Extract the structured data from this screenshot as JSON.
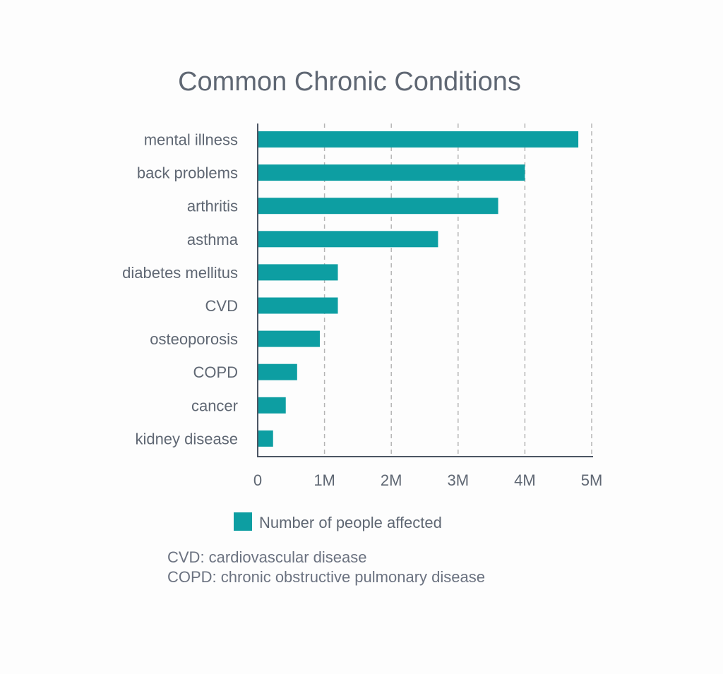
{
  "chart_data": {
    "type": "bar",
    "orientation": "horizontal",
    "title": "Common Chronic Conditions",
    "categories": [
      "mental illness",
      "back problems",
      "arthritis",
      "asthma",
      "diabetes mellitus",
      "CVD",
      "osteoporosis",
      "COPD",
      "cancer",
      "kidney disease"
    ],
    "series": [
      {
        "name": "Number of people affected",
        "values": [
          4800000,
          4000000,
          3600000,
          2700000,
          1200000,
          1200000,
          930000,
          590000,
          420000,
          230000
        ]
      }
    ],
    "xlim": [
      0,
      5000000
    ],
    "ticks": [
      0,
      1000000,
      2000000,
      3000000,
      4000000,
      5000000
    ],
    "tick_labels": [
      "0",
      "1M",
      "2M",
      "3M",
      "4M",
      "5M"
    ],
    "grid": "vertical dashed",
    "legend_placement": "bottom",
    "colors": {
      "bar": "#0d9ea2",
      "axis": "#4b5563",
      "grid": "#b5b5b5",
      "text": "#5f6773"
    }
  },
  "notes": [
    "CVD: cardiovascular disease",
    "COPD: chronic obstructive pulmonary disease"
  ]
}
